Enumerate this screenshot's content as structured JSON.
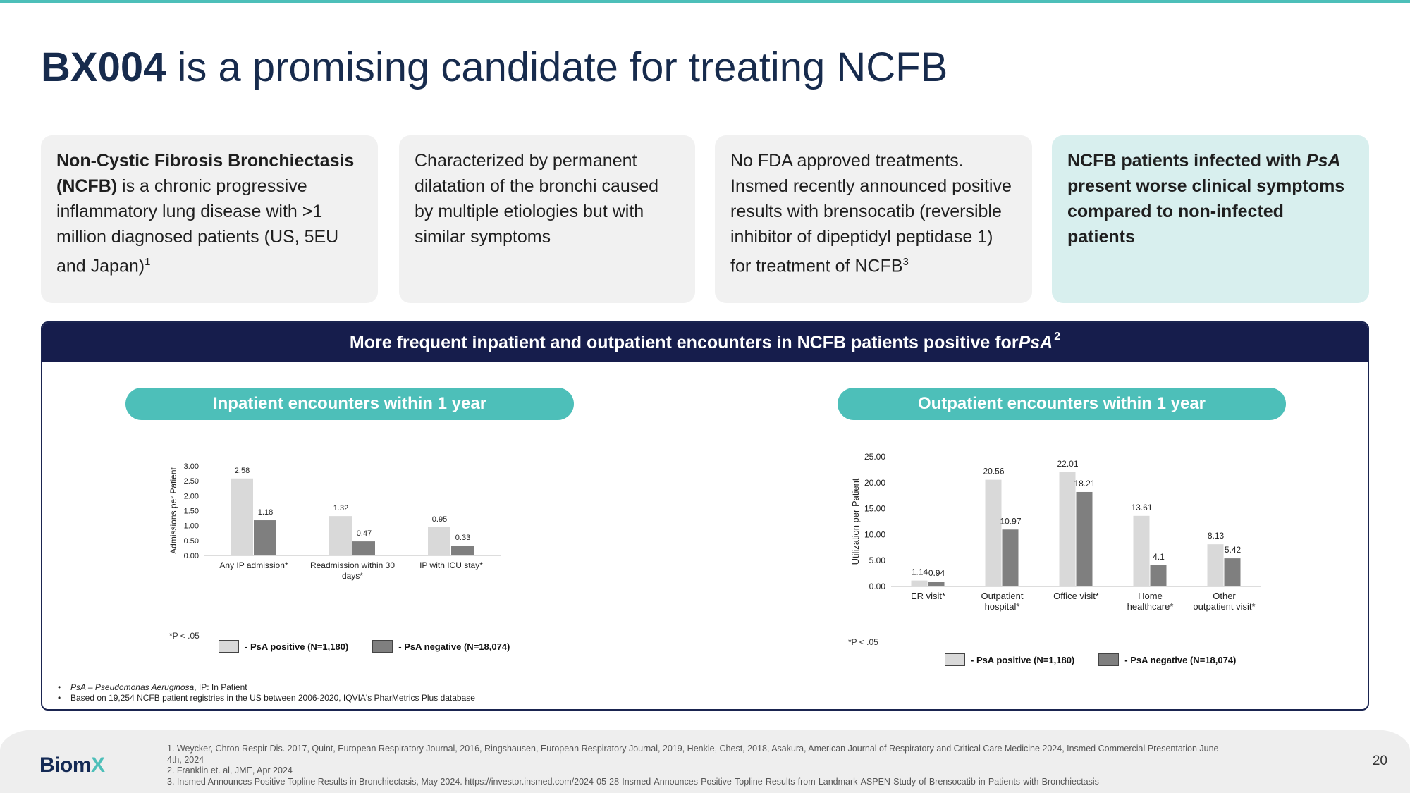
{
  "title": {
    "bold": "BX004",
    "rest": " is a promising candidate for treating NCFB"
  },
  "cards": {
    "c1": {
      "bold": "Non-Cystic Fibrosis Bronchiectasis (NCFB)",
      "text": " is a chronic progressive inflammatory lung disease with >1 million diagnosed patients (US, 5EU and Japan)",
      "sup": "1"
    },
    "c2": {
      "text": "Characterized by permanent dilatation of the bronchi caused by multiple etiologies but with similar symptoms"
    },
    "c3": {
      "text": "No FDA approved treatments. Insmed recently announced positive results with brensocatib (reversible inhibitor of dipeptidyl peptidase 1) for treatment of NCFB",
      "sup": "3"
    },
    "c4": {
      "part1": "NCFB patients infected with ",
      "italic": "PsA",
      "part2": " present worse clinical symptoms compared to non-infected patients"
    }
  },
  "panel": {
    "title": "More frequent inpatient and outpatient encounters in NCFB patients positive for ",
    "italic": "PsA",
    "sup": "2"
  },
  "legend": {
    "positive": "- PsA positive (N=1,180)",
    "negative": "- PsA negative (N=18,074)"
  },
  "colors": {
    "positive": "#d9d9d9",
    "negative": "#7f7f7f",
    "accent": "#4dbfb9",
    "navy": "#161d4c"
  },
  "chart_data": [
    {
      "type": "bar",
      "title": "Inpatient encounters within 1 year",
      "ylabel": "Admissions per Patient",
      "ylim": [
        0,
        3
      ],
      "yticks": [
        "3.00",
        "2.50",
        "2.00",
        "1.50",
        "1.00",
        "0.50",
        "0.00"
      ],
      "categories": [
        [
          "Any IP admission*"
        ],
        [
          "Readmission within 30",
          "days*"
        ],
        [
          "IP with ICU stay*"
        ]
      ],
      "series": [
        {
          "name": "PsA positive (N=1,180)",
          "values": [
            2.58,
            1.32,
            0.95
          ],
          "labels": [
            "2.58",
            "1.32",
            "0.95"
          ]
        },
        {
          "name": "PsA negative (N=18,074)",
          "values": [
            1.18,
            0.47,
            0.33
          ],
          "labels": [
            "1.18",
            "0.47",
            "0.33"
          ]
        }
      ],
      "note": "*P < .05",
      "legend": "bottom"
    },
    {
      "type": "bar",
      "title": "Outpatient encounters within 1 year",
      "ylabel": "Utilization per Patient",
      "ylim": [
        0,
        25
      ],
      "yticks": [
        "25.00",
        "20.00",
        "15.00",
        "10.00",
        "5.00",
        "0.00"
      ],
      "categories": [
        [
          "ER visit*"
        ],
        [
          "Outpatient",
          "hospital*"
        ],
        [
          "Office visit*"
        ],
        [
          "Home",
          "healthcare*"
        ],
        [
          "Other",
          "outpatient visit*"
        ]
      ],
      "series": [
        {
          "name": "PsA positive (N=1,180)",
          "values": [
            1.14,
            20.56,
            22.01,
            13.61,
            8.13
          ],
          "labels": [
            "1.14",
            "20.56",
            "22.01",
            "13.61",
            "8.13"
          ]
        },
        {
          "name": "PsA negative (N=18,074)",
          "values": [
            0.94,
            10.97,
            18.21,
            4.1,
            5.42
          ],
          "labels": [
            "0.94",
            "10.97",
            "18.21",
            "4.1",
            "5.42"
          ]
        }
      ],
      "note": "*P < .05",
      "legend": "bottom"
    }
  ],
  "notes": [
    {
      "italic": "PsA – Pseudomonas Aeruginosa",
      "text": ", IP: In Patient"
    },
    {
      "italic": "",
      "text": "Based on 19,254 NCFB patient registries in the US between 2006-2020, IQVIA's PharMetrics Plus database"
    }
  ],
  "footer": {
    "logo_main": "Biom",
    "logo_x": "X",
    "refs": [
      "1. Weycker, Chron Respir Dis. 2017, Quint, European Respiratory Journal, 2016, Ringshausen, European Respiratory Journal, 2019, Henkle, Chest, 2018, Asakura, American Journal of Respiratory and Critical Care Medicine 2024, Insmed Commercial Presentation June 4th, 2024",
      "2. Franklin et. al, JME, Apr 2024",
      "3. Insmed Announces Positive Topline Results in Bronchiectasis, May 2024. https://investor.insmed.com/2024-05-28-Insmed-Announces-Positive-Topline-Results-from-Landmark-ASPEN-Study-of-Brensocatib-in-Patients-with-Bronchiectasis"
    ],
    "page": "20"
  }
}
